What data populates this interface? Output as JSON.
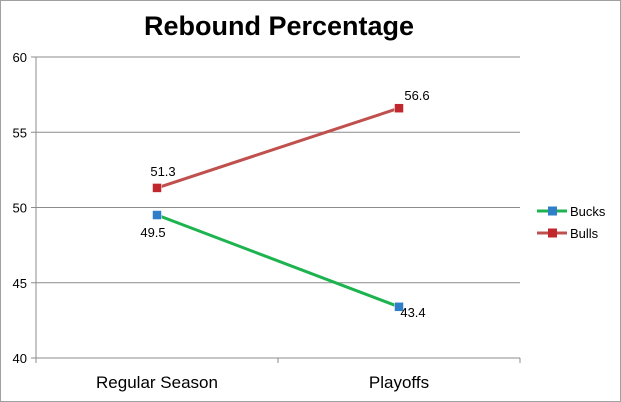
{
  "chart_data": {
    "type": "line",
    "title": "Rebound Percentage",
    "categories": [
      "Regular Season",
      "Playoffs"
    ],
    "ylim": [
      40,
      60
    ],
    "yticks": [
      40,
      45,
      50,
      55,
      60
    ],
    "grid": true,
    "legend": "right",
    "series": [
      {
        "name": "Bucks",
        "values": [
          49.5,
          43.4
        ],
        "labels": [
          "49.5",
          "43.4"
        ],
        "line_color": "#1db34f",
        "marker_color": "#2f7fc8"
      },
      {
        "name": "Bulls",
        "values": [
          51.3,
          56.6
        ],
        "labels": [
          "51.3",
          "56.6"
        ],
        "line_color": "#c0504d",
        "marker_color": "#c0282d"
      }
    ]
  }
}
